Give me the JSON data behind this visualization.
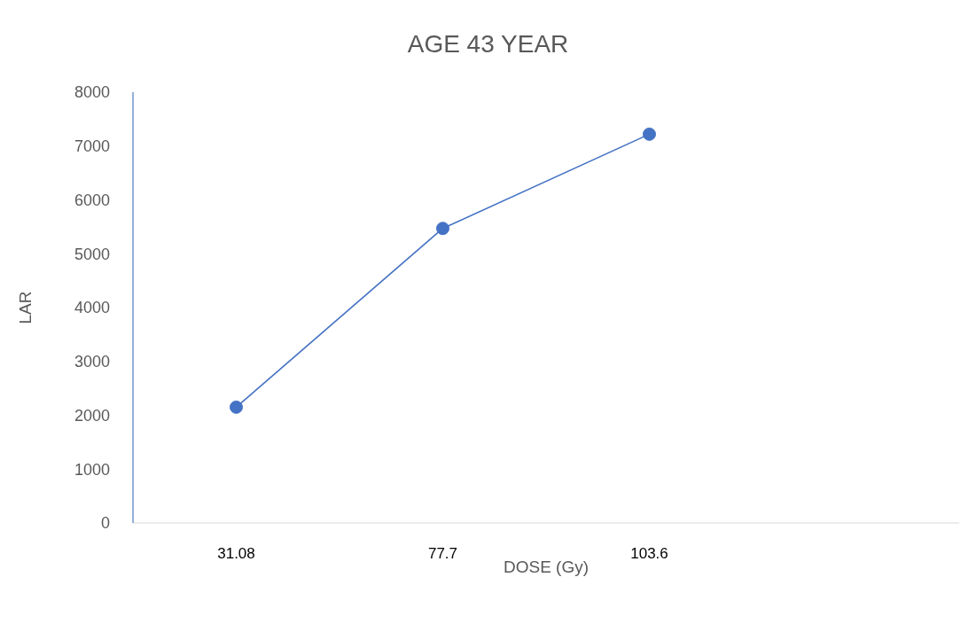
{
  "chart_data": {
    "type": "line",
    "title": "AGE 43 YEAR",
    "xlabel": "DOSE (Gy)",
    "ylabel": "LAR",
    "categories": [
      "31.08",
      "77.7",
      "103.6",
      null
    ],
    "series": [
      {
        "color": "#4472c4",
        "values": [
          2150,
          5470,
          7220,
          null
        ]
      }
    ],
    "ylim": [
      0,
      8000
    ],
    "yticks": [
      0,
      1000,
      2000,
      3000,
      4000,
      5000,
      6000,
      7000,
      8000
    ],
    "grid": false,
    "marker": "circle"
  }
}
